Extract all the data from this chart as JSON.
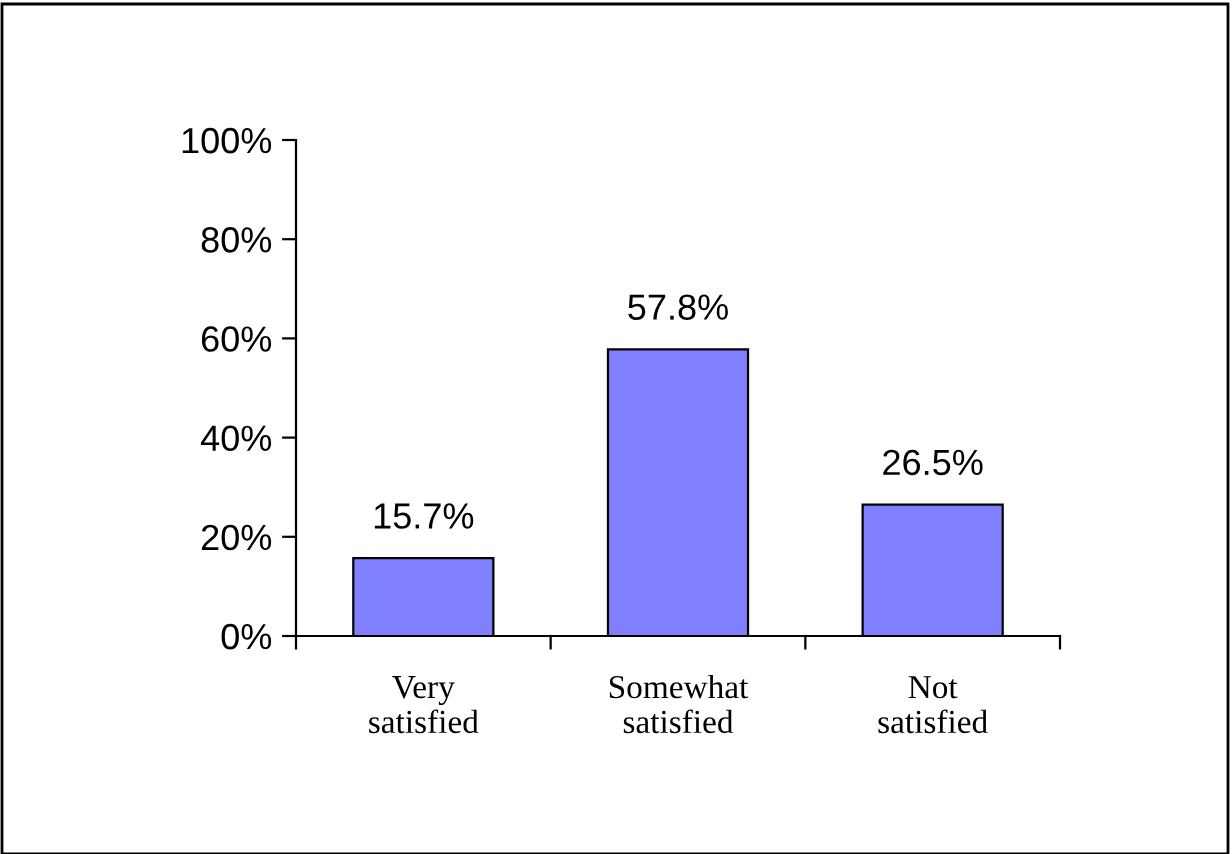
{
  "chart_data": {
    "type": "bar",
    "categories": [
      "Very\nsatisfied",
      "Somewhat\nsatisfied",
      "Not\nsatisfied"
    ],
    "values": [
      15.7,
      57.8,
      26.5
    ],
    "value_labels": [
      "15.7%",
      "57.8%",
      "26.5%"
    ],
    "color": "#8080ff",
    "ylim": [
      0,
      100
    ],
    "yticks": [
      {
        "value": 0,
        "label": "0%"
      },
      {
        "value": 20,
        "label": "20%"
      },
      {
        "value": 40,
        "label": "40%"
      },
      {
        "value": 60,
        "label": "60%"
      },
      {
        "value": 80,
        "label": "80%"
      },
      {
        "value": 100,
        "label": "100%"
      }
    ],
    "grid": false
  }
}
